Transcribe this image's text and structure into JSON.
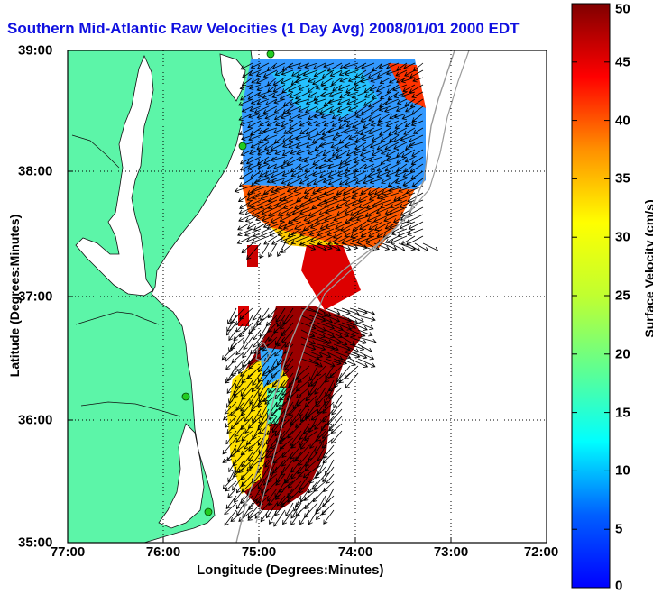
{
  "title": "Southern Mid-Atlantic Raw Velocities (1 Day Avg) 2008/01/01 2000 EDT",
  "x_label": "Longitude (Degrees:Minutes)",
  "y_label": "Latitude (Degrees:Minutes)",
  "x_ticks": [
    "77:00",
    "76:00",
    "75:00",
    "74:00",
    "73:00",
    "72:00"
  ],
  "y_ticks": [
    "39:00",
    "38:00",
    "37:00",
    "36:00",
    "35:00"
  ],
  "colorbar": {
    "label": "Surface Velocity (cm/s)",
    "ticks": [
      "0",
      "5",
      "10",
      "15",
      "20",
      "25",
      "30",
      "35",
      "40",
      "45",
      "50"
    ],
    "min": 0,
    "max": 50,
    "colormap": "jet"
  },
  "colors": {
    "land": "#5cf5a8",
    "title": "#1010e0",
    "grid": "#000000",
    "bathymetry": "#9a9a9a",
    "station": "#22cc22"
  },
  "map": {
    "lon_range": [
      "77:00",
      "72:00"
    ],
    "lat_range": [
      "35:00",
      "39:00"
    ],
    "grid": "dotted"
  }
}
